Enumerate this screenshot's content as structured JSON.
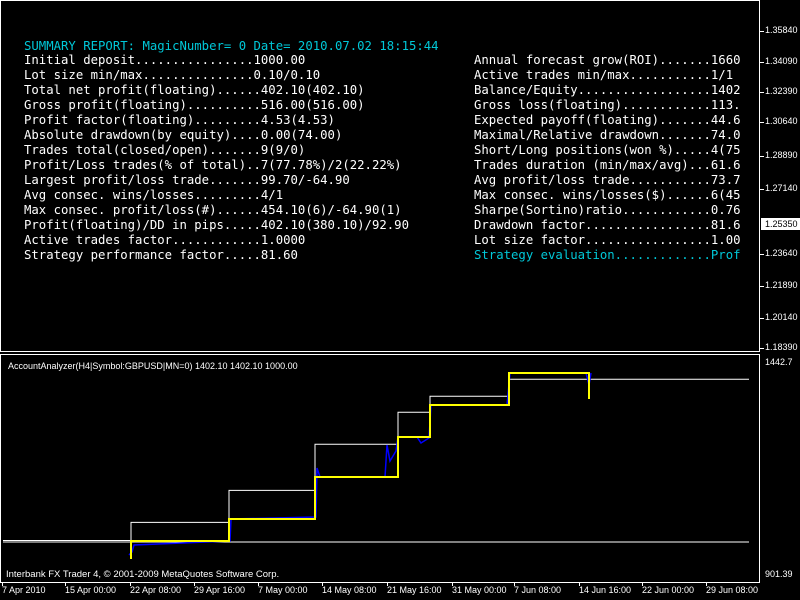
{
  "report": {
    "title": "SUMMARY REPORT: MagicNumber= 0 Date= 2010.07.02 18:15:44",
    "left": [
      "Initial deposit................1000.00",
      "Lot size min/max...............0.10/0.10",
      "Total net profit(floating)......402.10(402.10)",
      "Gross profit(floating)..........516.00(516.00)",
      "Profit factor(floating).........4.53(4.53)",
      "Absolute drawdown(by equity)....0.00(74.00)",
      "Trades total(closed/open).......9(9/0)",
      "Profit/Loss trades(% of total)..7(77.78%)/2(22.22%)",
      "Largest profit/loss trade.......99.70/-64.90",
      "Avg consec. wins/losses.........4/1",
      "Max consec. profit/loss(#)......454.10(6)/-64.90(1)",
      "Profit(floating)/DD in pips.....402.10(380.10)/92.90",
      "Active trades factor............1.0000",
      "Strategy performance factor.....81.60"
    ],
    "right": [
      "Annual forecast grow(ROI).......1660",
      "Active trades min/max...........1/1",
      "Balance/Equity..................1402",
      "Gross loss(floating)............113.",
      "Expected payoff(floating).......44.6",
      "Maximal/Relative drawdown.......74.0",
      "Short/Long positions(won %).....4(75",
      "Trades duration (min/max/avg)...61.6",
      "Avg profit/loss trade...........73.7",
      "Max consec. wins/losses($)......6(45",
      "Sharpe(Sortino)ratio............0.76",
      "Drawdown factor.................81.6",
      "Lot size factor.................1.00",
      "Strategy evaluation.............Prof"
    ]
  },
  "price_axis": [
    "1.35840",
    "1.34090",
    "1.32390",
    "1.30640",
    "1.28890",
    "1.27140",
    "1.23640",
    "1.21890",
    "1.20140",
    "1.18390"
  ],
  "current_price": "1.25350",
  "indicator": {
    "label": "AccountAnalyzer(H4|Symbol:GBPUSD|MN=0) 1402.10 1402.10 1000.00",
    "max": "1442.7",
    "min": "901.39",
    "balance_curve": [
      1000,
      1000,
      1000,
      1045,
      1045,
      1125,
      1125,
      1240,
      1240,
      1320,
      1320,
      1360,
      1360,
      1402,
      1402,
      1402,
      1402
    ],
    "colors": {
      "equity": "#0000ff",
      "balance_steps": "#ffff00",
      "line": "#ffffff"
    }
  },
  "copyright": "Interbank FX Trader 4, © 2001-2009 MetaQuotes Software Corp.",
  "time_axis": [
    "7 Apr 2010",
    "15 Apr 00:00",
    "22 Apr 08:00",
    "29 Apr 16:00",
    "7 May 00:00",
    "14 May 08:00",
    "21 May 16:00",
    "31 May 00:00",
    "7 Jun 08:00",
    "14 Jun 16:00",
    "22 Jun 00:00",
    "29 Jun 08:00"
  ]
}
